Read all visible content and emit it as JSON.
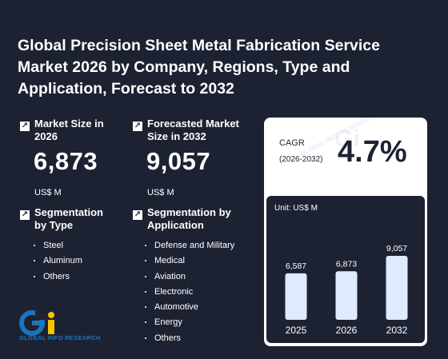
{
  "title": "Global Precision Sheet Metal Fabrication Service Market 2026 by Company, Regions, Type and Application, Forecast to 2032",
  "market_size": {
    "label": "Market Size in 2026",
    "value": "6,873",
    "unit": "US$ M"
  },
  "forecast": {
    "label": "Forecasted Market Size in 2032",
    "value": "9,057",
    "unit": "US$ M"
  },
  "seg_type": {
    "label": "Segmentation by Type",
    "items": [
      "Steel",
      "Aluminum",
      "Others"
    ]
  },
  "seg_app": {
    "label": "Segmentation by Application",
    "items": [
      "Defense and Military",
      "Medical",
      "Aviation",
      "Electronic",
      "Automotive",
      "Energy",
      "Others"
    ]
  },
  "cagr": {
    "label": "CAGR",
    "period": "(2026-2032)",
    "value": "4.7%"
  },
  "logo": {
    "text": "GLOBAL INFO RESEARCH",
    "mark": "Gi"
  },
  "watermark": "GLOBAL INFO RESEARCH",
  "colors": {
    "background": "#1d2233",
    "bar": "#dfeaff",
    "accent_blue": "#1c75bc",
    "accent_yellow": "#f5c400"
  },
  "chart_data": {
    "type": "bar",
    "unit_label": "Unit: US$ M",
    "categories": [
      "2025",
      "2026",
      "2032"
    ],
    "values": [
      6587,
      6873,
      9057
    ],
    "value_labels": [
      "6,587",
      "6,873",
      "9,057"
    ],
    "ylim": [
      0,
      9057
    ],
    "grid": false,
    "legend": "none"
  }
}
